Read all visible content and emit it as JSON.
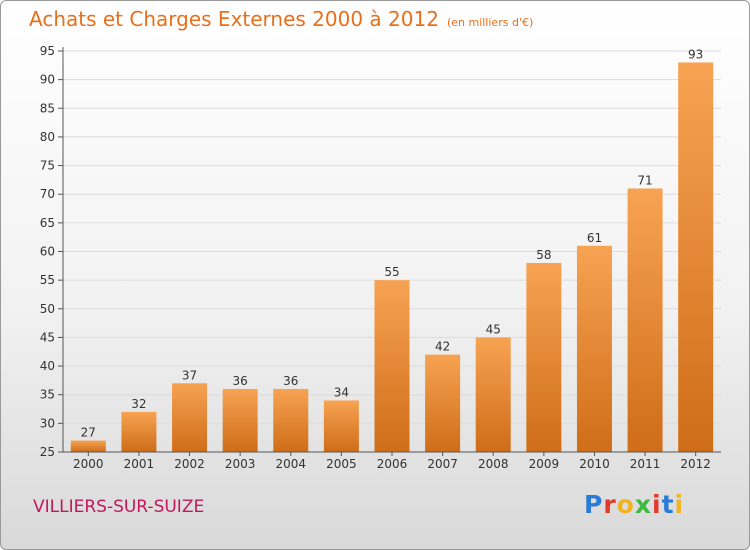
{
  "header": {
    "title": "Achats et Charges Externes 2000 à 2012",
    "unit": "(en milliers d'€)"
  },
  "footer": {
    "commune": "VILLIERS-SUR-SUIZE",
    "logo": "Proxiti"
  },
  "colors": {
    "title": "#e8701c",
    "commune": "#c2185b",
    "bar_top": "#f7a353",
    "bar_bottom": "#cf6d18",
    "grid": "#dcdcdc"
  },
  "chart_data": {
    "type": "bar",
    "title": "Achats et Charges Externes 2000 à 2012",
    "subtitle": "(en milliers d'€)",
    "xlabel": "",
    "ylabel": "",
    "categories": [
      "2000",
      "2001",
      "2002",
      "2003",
      "2004",
      "2005",
      "2006",
      "2007",
      "2008",
      "2009",
      "2010",
      "2011",
      "2012"
    ],
    "values": [
      27,
      32,
      37,
      36,
      36,
      34,
      55,
      42,
      45,
      58,
      61,
      71,
      93
    ],
    "ylim": [
      25,
      95
    ],
    "yticks": [
      25,
      30,
      35,
      40,
      45,
      50,
      55,
      60,
      65,
      70,
      75,
      80,
      85,
      90,
      95
    ],
    "grid": true,
    "data_labels": true,
    "legend": "none"
  }
}
